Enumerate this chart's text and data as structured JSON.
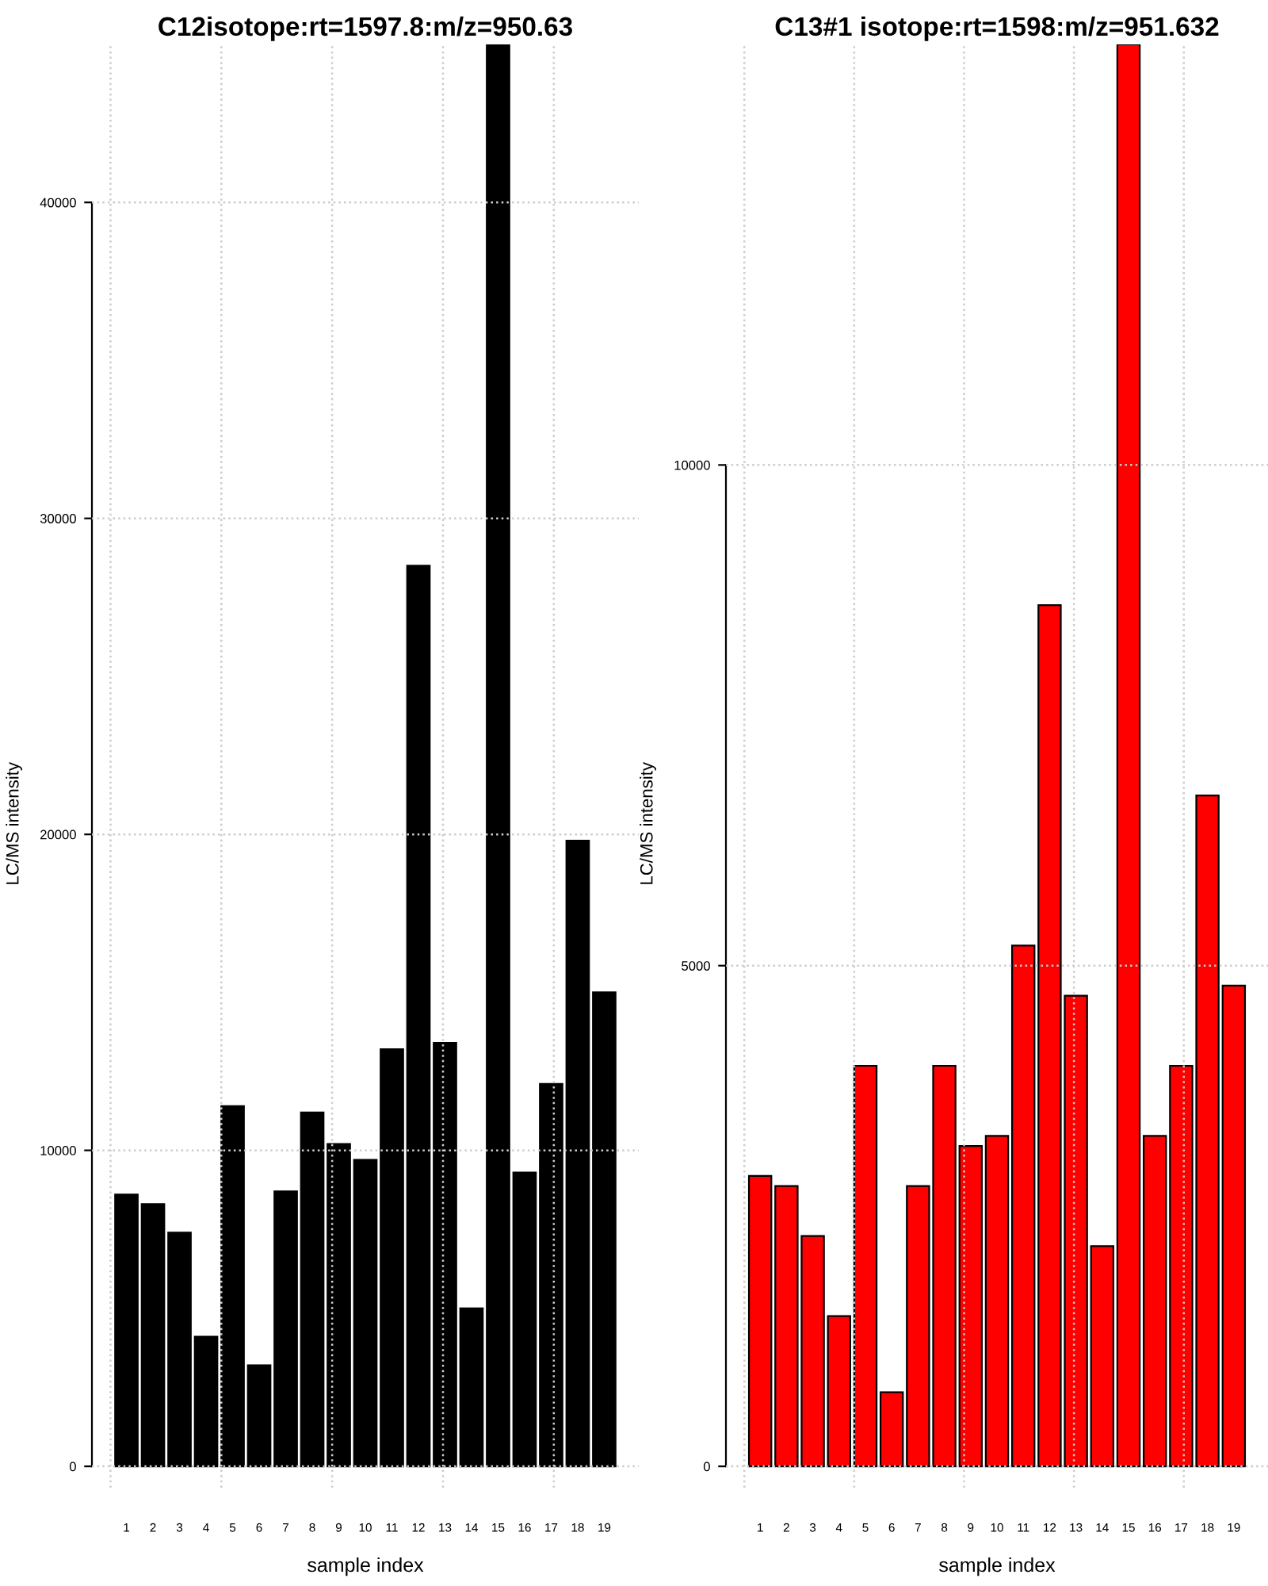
{
  "chart_data": [
    {
      "type": "bar",
      "title": "C12isotope:rt=1597.8:m/z=950.63",
      "xlabel": "sample index",
      "ylabel": "LC/MS intensity",
      "categories": [
        "1",
        "2",
        "3",
        "4",
        "5",
        "6",
        "7",
        "8",
        "9",
        "10",
        "11",
        "12",
        "13",
        "14",
        "15",
        "16",
        "17",
        "18",
        "19"
      ],
      "values": [
        8600,
        8300,
        7400,
        4100,
        11400,
        3200,
        8700,
        11200,
        10200,
        9700,
        13200,
        28500,
        13400,
        5000,
        45000,
        9300,
        12100,
        19800,
        15000
      ],
      "color": "#000000",
      "ylim": [
        0,
        45000
      ],
      "yticks": [
        0,
        10000,
        20000,
        30000,
        40000
      ],
      "grid": true
    },
    {
      "type": "bar",
      "title": "C13#1 isotope:rt=1598:m/z=951.632",
      "xlabel": "sample index",
      "ylabel": "LC/MS intensity",
      "categories": [
        "1",
        "2",
        "3",
        "4",
        "5",
        "6",
        "7",
        "8",
        "9",
        "10",
        "11",
        "12",
        "13",
        "14",
        "15",
        "16",
        "17",
        "18",
        "19"
      ],
      "values": [
        2900,
        2800,
        2300,
        1500,
        4000,
        740,
        2800,
        4000,
        3200,
        3300,
        5200,
        8600,
        4700,
        2200,
        14200,
        3300,
        4000,
        6700,
        4800
      ],
      "color": "#ff0000",
      "ylim": [
        0,
        14200
      ],
      "yticks": [
        0,
        5000,
        10000
      ],
      "grid": true
    }
  ]
}
